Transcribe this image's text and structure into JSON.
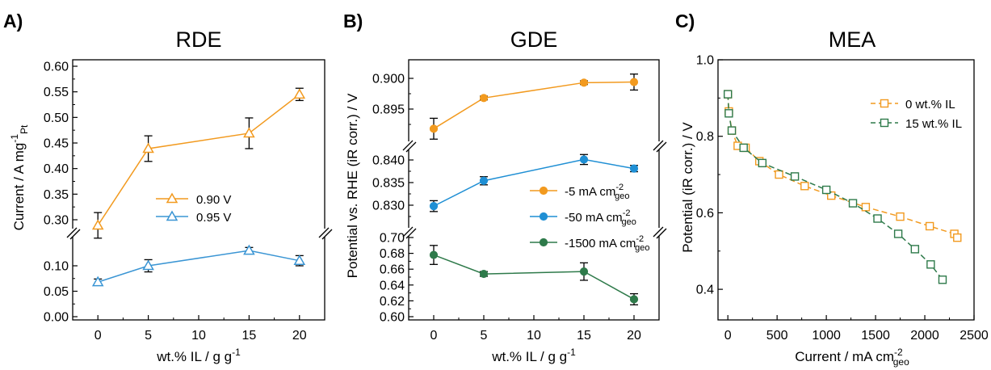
{
  "chart_data": [
    {
      "panel": "A)",
      "title": "RDE",
      "type": "line",
      "xlabel": "wt.% IL / g g-1",
      "ylabel": "Current / A mg-1 Pt",
      "xlim": [
        -2.5,
        22.5
      ],
      "x_ticks": [
        "0",
        "5",
        "10",
        "15",
        "20"
      ],
      "y_ticks_upper": [
        "0.30",
        "0.35",
        "0.40",
        "0.45",
        "0.50",
        "0.55",
        "0.60"
      ],
      "y_ticks_lower": [
        "0.00",
        "0.05",
        "0.10"
      ],
      "axis_break": true,
      "grid": false,
      "legend_position": "center",
      "series": [
        {
          "name": "0.90 V",
          "color": "#f29a1f",
          "marker": "open-triangle",
          "x": [
            0,
            5,
            15,
            20
          ],
          "y": [
            0.289,
            0.439,
            0.469,
            0.545
          ],
          "err": [
            0.025,
            0.025,
            0.03,
            0.012
          ]
        },
        {
          "name": "0.95 V",
          "color": "#3a95d4",
          "marker": "open-triangle",
          "x": [
            0,
            5,
            15,
            20
          ],
          "y": [
            0.068,
            0.1,
            0.13,
            0.11
          ],
          "err": [
            0.006,
            0.012,
            0.006,
            0.01
          ]
        }
      ]
    },
    {
      "panel": "B)",
      "title": "GDE",
      "type": "line",
      "xlabel": "wt.% IL / g g-1",
      "ylabel": "Potential vs. RHE (iR corr.) / V",
      "xlim": [
        -2.5,
        22.5
      ],
      "x_ticks": [
        "0",
        "5",
        "10",
        "15",
        "20"
      ],
      "y_ticks_top": [
        "0.895",
        "0.900"
      ],
      "y_ticks_middle": [
        "0.830",
        "0.835",
        "0.840"
      ],
      "y_ticks_bottom": [
        "0.60",
        "0.62",
        "0.64",
        "0.66",
        "0.68",
        "0.70"
      ],
      "axis_break": true,
      "grid": false,
      "legend_position": "center-right",
      "series": [
        {
          "name_main": "-5 mA cm",
          "name_sup": "-2",
          "name_sub": "geo",
          "color": "#f29a1f",
          "marker": "filled-circle",
          "x": [
            0,
            5,
            15,
            20
          ],
          "y": [
            0.8918,
            0.8968,
            0.8993,
            0.8994
          ],
          "err": [
            0.0017,
            0.0003,
            0.0003,
            0.0013
          ]
        },
        {
          "name_main": "-50 mA cm",
          "name_sup": "-2",
          "name_sub": "geo",
          "color": "#1f8fd4",
          "marker": "filled-circle",
          "x": [
            0,
            5,
            15,
            20
          ],
          "y": [
            0.8298,
            0.8354,
            0.8401,
            0.8381
          ],
          "err": [
            0.0012,
            0.0009,
            0.0011,
            0.0007
          ]
        },
        {
          "name_main": "-1500 mA cm",
          "name_sup": "-2",
          "name_sub": "geo",
          "color": "#2e7a4a",
          "marker": "filled-circle",
          "x": [
            0,
            5,
            15,
            20
          ],
          "y": [
            0.678,
            0.654,
            0.657,
            0.622
          ],
          "err": [
            0.012,
            0.003,
            0.011,
            0.007
          ]
        }
      ]
    },
    {
      "panel": "C)",
      "title": "MEA",
      "type": "line",
      "xlabel_main": "Current / mA cm",
      "xlabel_sup": "-2",
      "xlabel_sub": "geo",
      "ylabel": "Potential (iR corr.) / V",
      "xlim": [
        -100,
        2500
      ],
      "ylim": [
        0.32,
        1.0
      ],
      "x_ticks": [
        0,
        500,
        1000,
        1500,
        2000,
        2500
      ],
      "y_ticks": [
        "0.4",
        "0.6",
        "0.8",
        "1.0"
      ],
      "grid": false,
      "legend_position": "top-right",
      "series": [
        {
          "name": "0 wt.% IL",
          "color": "#f29a1f",
          "marker": "open-square",
          "line": "dashed",
          "x": [
            0,
            10,
            40,
            100,
            180,
            320,
            520,
            780,
            1050,
            1400,
            1750,
            2050,
            2300,
            2330
          ],
          "y": [
            0.91,
            0.865,
            0.815,
            0.775,
            0.77,
            0.735,
            0.7,
            0.67,
            0.645,
            0.615,
            0.59,
            0.565,
            0.545,
            0.535
          ]
        },
        {
          "name": "15 wt.% IL",
          "color": "#2e7a4a",
          "marker": "open-square",
          "line": "dashed",
          "x": [
            0,
            10,
            40,
            160,
            350,
            680,
            1000,
            1270,
            1520,
            1730,
            1900,
            2060,
            2180
          ],
          "y": [
            0.91,
            0.86,
            0.815,
            0.77,
            0.73,
            0.695,
            0.66,
            0.625,
            0.585,
            0.545,
            0.505,
            0.465,
            0.425
          ]
        }
      ]
    }
  ]
}
